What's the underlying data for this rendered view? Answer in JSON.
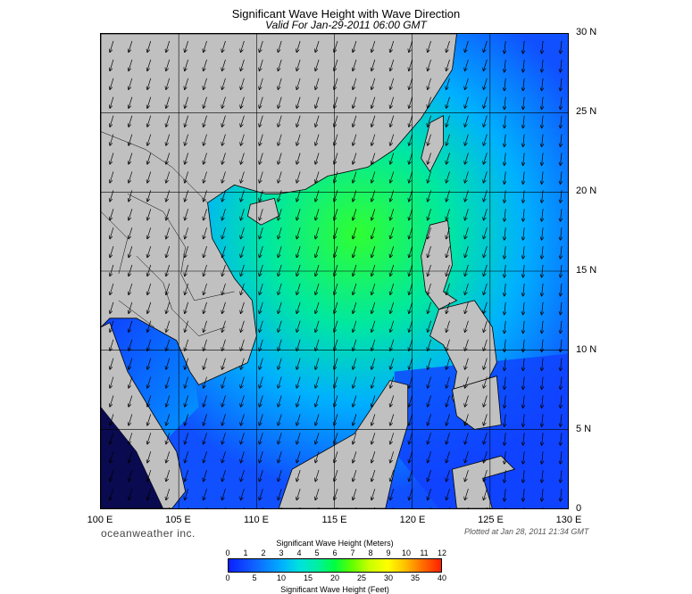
{
  "title": "Significant Wave Height with Wave Direction",
  "subtitle": "Valid For Jan-29-2011 06:00 GMT",
  "lat_labels": [
    "30 N",
    "25 N",
    "20 N",
    "15 N",
    "10 N",
    "5 N",
    "0"
  ],
  "lon_labels": [
    "100 E",
    "105 E",
    "110 E",
    "115 E",
    "120 E",
    "125 E",
    "130 E"
  ],
  "brand": "oceanweather inc.",
  "plotted": "Plotted at Jan 28, 2011 21:34 GMT",
  "colorbar": {
    "meters_title": "Significant Wave Height (Meters)",
    "feet_title": "Significant Wave Height (Feet)",
    "meters_ticks": [
      "0",
      "1",
      "2",
      "3",
      "4",
      "5",
      "6",
      "7",
      "8",
      "9",
      "10",
      "11",
      "12"
    ],
    "feet_ticks": [
      "0",
      "5",
      "10",
      "15",
      "20",
      "25",
      "30",
      "35",
      "40"
    ]
  },
  "colors": {
    "land": "#c0c0c0",
    "ocean_low": "#1040ff",
    "ocean_mid": "#00c8ff",
    "ocean_high": "#20ff20"
  }
}
